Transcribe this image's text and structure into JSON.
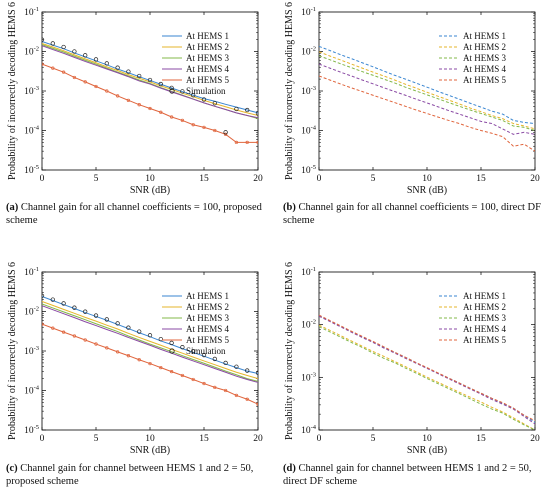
{
  "figure": {
    "colors": {
      "hems1": "#3a86d1",
      "hems2": "#e6b52b",
      "hems3": "#83b84a",
      "hems4": "#8a4aa4",
      "hems5": "#e0653d",
      "sim": "#222222"
    },
    "captions": [
      {
        "label": "(a)",
        "text": "Channel gain for all channel coefficients = 100, proposed scheme"
      },
      {
        "label": "(b)",
        "text": "Channel gain for all channel coefficients = 100, direct DF scheme"
      },
      {
        "label": "(c)",
        "text": "Channel gain for channel between HEMS 1 and 2 = 50, proposed scheme"
      },
      {
        "label": "(d)",
        "text": "Channel gain for channel between HEMS 1 and 2 = 50, direct DF scheme"
      }
    ]
  },
  "chart_data": [
    {
      "type": "line",
      "ylabel": "Probability of incorrectly decoding HEMS 6",
      "xlabel": "SNR (dB)",
      "x": [
        0,
        1,
        2,
        3,
        4,
        5,
        6,
        7,
        8,
        9,
        10,
        11,
        12,
        13,
        14,
        15,
        16,
        17,
        18,
        19,
        20
      ],
      "xlim": [
        0,
        20
      ],
      "xticks": [
        0,
        5,
        10,
        15,
        20
      ],
      "ylim_exp": [
        -5,
        -1
      ],
      "yscale": "log",
      "ytick_exps": [
        -5,
        -4,
        -3,
        -2,
        -1
      ],
      "line_style": "solid",
      "legend_position": "upper-right",
      "series": [
        {
          "name": "At HEMS 1",
          "color_key": "hems1",
          "values": [
            0.018,
            0.0145,
            0.0118,
            0.0092,
            0.0073,
            0.0058,
            0.0046,
            0.0036,
            0.0029,
            0.0023,
            0.00185,
            0.00148,
            0.00119,
            0.00096,
            0.00078,
            0.00064,
            0.00055,
            0.00046,
            0.00039,
            0.00033,
            0.00028
          ]
        },
        {
          "name": "At HEMS 2",
          "color_key": "hems2",
          "values": [
            0.016,
            0.013,
            0.0105,
            0.0082,
            0.0065,
            0.0052,
            0.0041,
            0.0033,
            0.0026,
            0.0021,
            0.0017,
            0.00135,
            0.0011,
            0.00088,
            0.00072,
            0.00058,
            0.00048,
            0.0004,
            0.00033,
            0.00028,
            0.00024
          ]
        },
        {
          "name": "At HEMS 3",
          "color_key": "hems3",
          "values": [
            0.015,
            0.012,
            0.0097,
            0.0076,
            0.006,
            0.0048,
            0.0038,
            0.003,
            0.0024,
            0.0019,
            0.00155,
            0.00122,
            0.00098,
            0.00079,
            0.00063,
            0.0005,
            0.00041,
            0.00034,
            0.00028,
            0.00024,
            0.0002
          ]
        },
        {
          "name": "At HEMS 4",
          "color_key": "hems4",
          "values": [
            0.014,
            0.0112,
            0.009,
            0.0071,
            0.0056,
            0.0045,
            0.0036,
            0.0029,
            0.0023,
            0.0018,
            0.0015,
            0.00118,
            0.00095,
            0.00077,
            0.00062,
            0.0005,
            0.00041,
            0.00034,
            0.00028,
            0.00024,
            0.00021
          ]
        },
        {
          "name": "At HEMS 5",
          "color_key": "hems5",
          "markers": true,
          "values": [
            0.0048,
            0.0038,
            0.003,
            0.0022,
            0.0017,
            0.0013,
            0.001,
            0.00075,
            0.00058,
            0.00045,
            0.00036,
            0.00029,
            0.00022,
            0.00018,
            0.00014,
            0.00012,
            0.0001,
            8e-05,
            5e-05,
            5e-05,
            5e-05
          ]
        },
        {
          "name": "Simulation",
          "color_key": "sim",
          "type": "scatter",
          "values": [
            0.02,
            0.016,
            0.013,
            0.01,
            0.008,
            0.0063,
            0.005,
            0.0039,
            0.0031,
            0.0024,
            0.0019,
            0.0015,
            0.0012,
            0.00098,
            0.00078,
            0.00061,
            0.00049,
            9e-05,
            0.00035,
            0.00033,
            0.00027
          ]
        }
      ]
    },
    {
      "type": "line",
      "ylabel": "Probability of incorrectly decoding HEMS 6",
      "xlabel": "SNR (dB)",
      "x": [
        0,
        1,
        2,
        3,
        4,
        5,
        6,
        7,
        8,
        9,
        10,
        11,
        12,
        13,
        14,
        15,
        16,
        17,
        18,
        19,
        20
      ],
      "xlim": [
        0,
        20
      ],
      "xticks": [
        0,
        5,
        10,
        15,
        20
      ],
      "ylim_exp": [
        -5,
        -1
      ],
      "yscale": "log",
      "ytick_exps": [
        -5,
        -4,
        -3,
        -2,
        -1
      ],
      "line_style": "dashed",
      "legend_position": "upper-right",
      "series": [
        {
          "name": "At HEMS 1",
          "color_key": "hems1",
          "values": [
            0.0135,
            0.0106,
            0.0083,
            0.0066,
            0.0052,
            0.0041,
            0.0032,
            0.0025,
            0.002,
            0.00158,
            0.00125,
            0.00098,
            0.00078,
            0.00062,
            0.00049,
            0.00039,
            0.00031,
            0.00026,
            0.00018,
            0.00016,
            0.00015
          ]
        },
        {
          "name": "At HEMS 2",
          "color_key": "hems2",
          "values": [
            0.0098,
            0.0077,
            0.0061,
            0.0048,
            0.0038,
            0.003,
            0.0024,
            0.0019,
            0.00148,
            0.00118,
            0.00093,
            0.00074,
            0.00059,
            0.00047,
            0.00037,
            0.0003,
            0.00024,
            0.0002,
            0.00015,
            0.00013,
            0.00011
          ]
        },
        {
          "name": "At HEMS 3",
          "color_key": "hems3",
          "values": [
            0.0078,
            0.0062,
            0.0049,
            0.0039,
            0.0031,
            0.0025,
            0.002,
            0.0016,
            0.00125,
            0.001,
            0.0008,
            0.00064,
            0.00051,
            0.00041,
            0.00033,
            0.00027,
            0.00022,
            0.00018,
            0.00013,
            0.00012,
            0.0001
          ]
        },
        {
          "name": "At HEMS 4",
          "color_key": "hems4",
          "values": [
            0.0048,
            0.0038,
            0.003,
            0.0024,
            0.0019,
            0.00152,
            0.00121,
            0.00097,
            0.00078,
            0.00062,
            0.0005,
            0.0004,
            0.00032,
            0.00026,
            0.00021,
            0.00017,
            0.00015,
            0.00011,
            8e-05,
            9e-05,
            8e-05
          ]
        },
        {
          "name": "At HEMS 5",
          "color_key": "hems5",
          "values": [
            0.0024,
            0.0019,
            0.0015,
            0.0012,
            0.00097,
            0.00078,
            0.00063,
            0.00051,
            0.00041,
            0.00033,
            0.00027,
            0.00022,
            0.00018,
            0.00015,
            0.00012,
            0.0001,
            8.5e-05,
            7e-05,
            4e-05,
            4.5e-05,
            3e-05
          ]
        }
      ]
    },
    {
      "type": "line",
      "ylabel": "Probability of incorrectly decoding HEMS 6",
      "xlabel": "SNR (dB)",
      "x": [
        0,
        1,
        2,
        3,
        4,
        5,
        6,
        7,
        8,
        9,
        10,
        11,
        12,
        13,
        14,
        15,
        16,
        17,
        18,
        19,
        20
      ],
      "xlim": [
        0,
        20
      ],
      "xticks": [
        0,
        5,
        10,
        15,
        20
      ],
      "ylim_exp": [
        -5,
        -1
      ],
      "yscale": "log",
      "ytick_exps": [
        -5,
        -4,
        -3,
        -2,
        -1
      ],
      "line_style": "solid",
      "legend_position": "upper-right",
      "series": [
        {
          "name": "At HEMS 1",
          "color_key": "hems1",
          "values": [
            0.024,
            0.019,
            0.015,
            0.0119,
            0.0094,
            0.0075,
            0.006,
            0.0047,
            0.0037,
            0.0029,
            0.0023,
            0.0018,
            0.00145,
            0.00115,
            0.00092,
            0.00074,
            0.00059,
            0.00047,
            0.00038,
            0.00031,
            0.00027
          ]
        },
        {
          "name": "At HEMS 2",
          "color_key": "hems2",
          "values": [
            0.018,
            0.0143,
            0.0113,
            0.009,
            0.0071,
            0.0057,
            0.0045,
            0.0036,
            0.0028,
            0.0022,
            0.00175,
            0.0014,
            0.0011,
            0.00088,
            0.0007,
            0.00056,
            0.00045,
            0.00036,
            0.00029,
            0.00024,
            0.0002
          ]
        },
        {
          "name": "At HEMS 3",
          "color_key": "hems3",
          "values": [
            0.0155,
            0.0123,
            0.0098,
            0.0078,
            0.0062,
            0.0049,
            0.0039,
            0.0031,
            0.0024,
            0.0019,
            0.0015,
            0.0012,
            0.00096,
            0.00076,
            0.00061,
            0.00049,
            0.00039,
            0.00031,
            0.00025,
            0.0002,
            0.00017
          ]
        },
        {
          "name": "At HEMS 4",
          "color_key": "hems4",
          "values": [
            0.014,
            0.0111,
            0.0088,
            0.007,
            0.0055,
            0.0044,
            0.0035,
            0.0028,
            0.0022,
            0.00175,
            0.0014,
            0.0011,
            0.00088,
            0.0007,
            0.00056,
            0.00045,
            0.00036,
            0.00029,
            0.00023,
            0.00019,
            0.00016
          ]
        },
        {
          "name": "At HEMS 5",
          "color_key": "hems5",
          "markers": true,
          "values": [
            0.0048,
            0.0038,
            0.003,
            0.0024,
            0.0019,
            0.0015,
            0.0012,
            0.00095,
            0.00076,
            0.0006,
            0.00048,
            0.00038,
            0.0003,
            0.00024,
            0.00019,
            0.00015,
            0.00012,
            0.0001,
            7.5e-05,
            6e-05,
            4.5e-05
          ]
        },
        {
          "name": "Simulation",
          "color_key": "sim",
          "type": "scatter",
          "values": [
            0.025,
            0.02,
            0.016,
            0.0125,
            0.0099,
            0.0079,
            0.0063,
            0.005,
            0.0039,
            0.0031,
            0.0025,
            0.002,
            0.0016,
            0.00125,
            0.00099,
            0.00079,
            0.00063,
            0.0005,
            0.0004,
            0.00032,
            0.00028
          ]
        }
      ]
    },
    {
      "type": "line",
      "ylabel": "Probability of incorrectly decoding HEMS 6",
      "xlabel": "SNR (dB)",
      "x": [
        0,
        1,
        2,
        3,
        4,
        5,
        6,
        7,
        8,
        9,
        10,
        11,
        12,
        13,
        14,
        15,
        16,
        17,
        18,
        19,
        20
      ],
      "xlim": [
        0,
        20
      ],
      "xticks": [
        0,
        5,
        10,
        15,
        20
      ],
      "ylim_exp": [
        -4,
        -1
      ],
      "yscale": "log",
      "ytick_exps": [
        -4,
        -3,
        -2,
        -1
      ],
      "line_style": "dashed",
      "legend_position": "upper-right",
      "series": [
        {
          "name": "At HEMS 1",
          "color_key": "hems1",
          "values": [
            0.0148,
            0.0117,
            0.0093,
            0.0074,
            0.0059,
            0.0047,
            0.0037,
            0.003,
            0.0024,
            0.0019,
            0.0015,
            0.0012,
            0.00097,
            0.00078,
            0.00062,
            0.0005,
            0.0004,
            0.00032,
            0.00026,
            0.00019,
            0.00014
          ]
        },
        {
          "name": "At HEMS 2",
          "color_key": "hems2",
          "values": [
            0.0098,
            0.0078,
            0.0062,
            0.0049,
            0.0039,
            0.0031,
            0.0025,
            0.002,
            0.0016,
            0.00127,
            0.00101,
            0.00081,
            0.00065,
            0.00052,
            0.00042,
            0.00034,
            0.00027,
            0.00022,
            0.00017,
            0.00013,
            0.0001
          ]
        },
        {
          "name": "At HEMS 3",
          "color_key": "hems3",
          "values": [
            0.0092,
            0.0073,
            0.0058,
            0.0046,
            0.0037,
            0.0029,
            0.0023,
            0.0019,
            0.0015,
            0.0012,
            0.00095,
            0.00076,
            0.00061,
            0.00049,
            0.00039,
            0.00031,
            0.00025,
            0.00021,
            0.00016,
            0.000125,
            0.0001
          ]
        },
        {
          "name": "At HEMS 4",
          "color_key": "hems4",
          "values": [
            0.0145,
            0.0115,
            0.0091,
            0.0072,
            0.0057,
            0.0046,
            0.0036,
            0.0029,
            0.0023,
            0.00185,
            0.00148,
            0.00118,
            0.00094,
            0.00075,
            0.0006,
            0.00048,
            0.00038,
            0.00031,
            0.00025,
            0.00018,
            0.00013
          ]
        },
        {
          "name": "At HEMS 5",
          "color_key": "hems5",
          "values": [
            0.0152,
            0.012,
            0.0095,
            0.0075,
            0.006,
            0.0048,
            0.0038,
            0.003,
            0.0024,
            0.0019,
            0.00153,
            0.00122,
            0.00097,
            0.00078,
            0.00062,
            0.0005,
            0.0004,
            0.00033,
            0.00026,
            0.00019,
            0.00015
          ]
        }
      ]
    }
  ]
}
